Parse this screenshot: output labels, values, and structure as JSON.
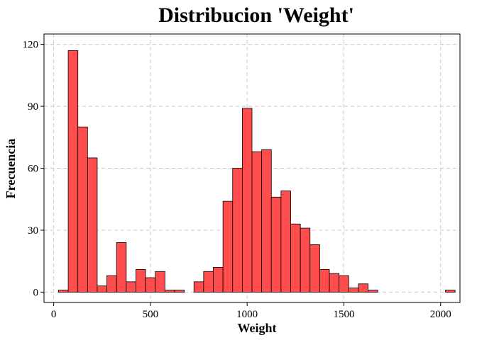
{
  "chart_data": {
    "type": "bar",
    "title": "Distribucion 'Weight'",
    "xlabel": "Weight",
    "ylabel": "Frecuencia",
    "xlim": [
      -50,
      2100
    ],
    "ylim": [
      -5,
      125
    ],
    "x_ticks": [
      0,
      500,
      1000,
      1500,
      2000
    ],
    "y_ticks": [
      0,
      30,
      60,
      90,
      120
    ],
    "grid": true,
    "bin_width": 50,
    "bin_starts": [
      25,
      75,
      125,
      175,
      225,
      275,
      325,
      375,
      425,
      475,
      525,
      575,
      625,
      675,
      725,
      775,
      825,
      875,
      925,
      975,
      1025,
      1075,
      1125,
      1175,
      1225,
      1275,
      1325,
      1375,
      1425,
      1475,
      1525,
      1575,
      1625,
      1675,
      1725,
      1775,
      1825,
      1875,
      1925,
      1975,
      2025
    ],
    "values": [
      1,
      117,
      80,
      65,
      3,
      8,
      24,
      5,
      11,
      7,
      10,
      1,
      1,
      0,
      5,
      10,
      12,
      44,
      60,
      89,
      68,
      69,
      46,
      49,
      33,
      31,
      23,
      11,
      9,
      8,
      2,
      4,
      1,
      0,
      0,
      0,
      0,
      0,
      0,
      0,
      1
    ],
    "colors": {
      "bar_fill": "#ff4d4d",
      "bar_stroke": "#000000",
      "grid": "#c8c8c8"
    }
  }
}
